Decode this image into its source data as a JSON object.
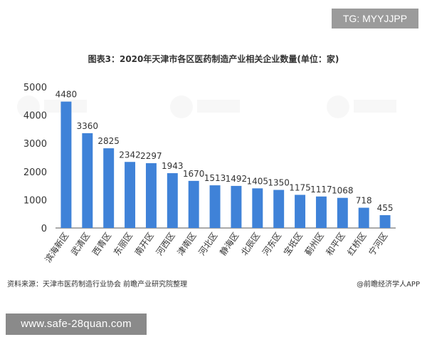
{
  "badge": {
    "text": "TG: MYYJJPP"
  },
  "banner": {
    "text": "www.safe-28quan.com"
  },
  "footer": {
    "source": "资料来源：天津市医药制造行业协会 前瞻产业研究院整理",
    "credit": "@前瞻经济学人APP"
  },
  "colors": {
    "bar": "#3f82d8",
    "axis": "#555555",
    "text": "#333333"
  },
  "chart_data": {
    "type": "bar",
    "title": "图表3：2020年天津市各区医药制造产业相关企业数量(单位：家)",
    "categories": [
      "滨海新区",
      "武清区",
      "西青区",
      "东丽区",
      "南开区",
      "河西区",
      "津南区",
      "河北区",
      "静海区",
      "北辰区",
      "河东区",
      "宝坻区",
      "蓟州区",
      "和平区",
      "红桥区",
      "宁河区"
    ],
    "values": [
      4480,
      3360,
      2825,
      2342,
      2297,
      1943,
      1670,
      1513,
      1492,
      1405,
      1350,
      1175,
      1117,
      1068,
      718,
      455
    ],
    "ylim": [
      0,
      5000
    ],
    "yticks": [
      0,
      1000,
      2000,
      3000,
      4000,
      5000
    ],
    "xlabel": "",
    "ylabel": "",
    "grid": false,
    "legend": "none"
  }
}
